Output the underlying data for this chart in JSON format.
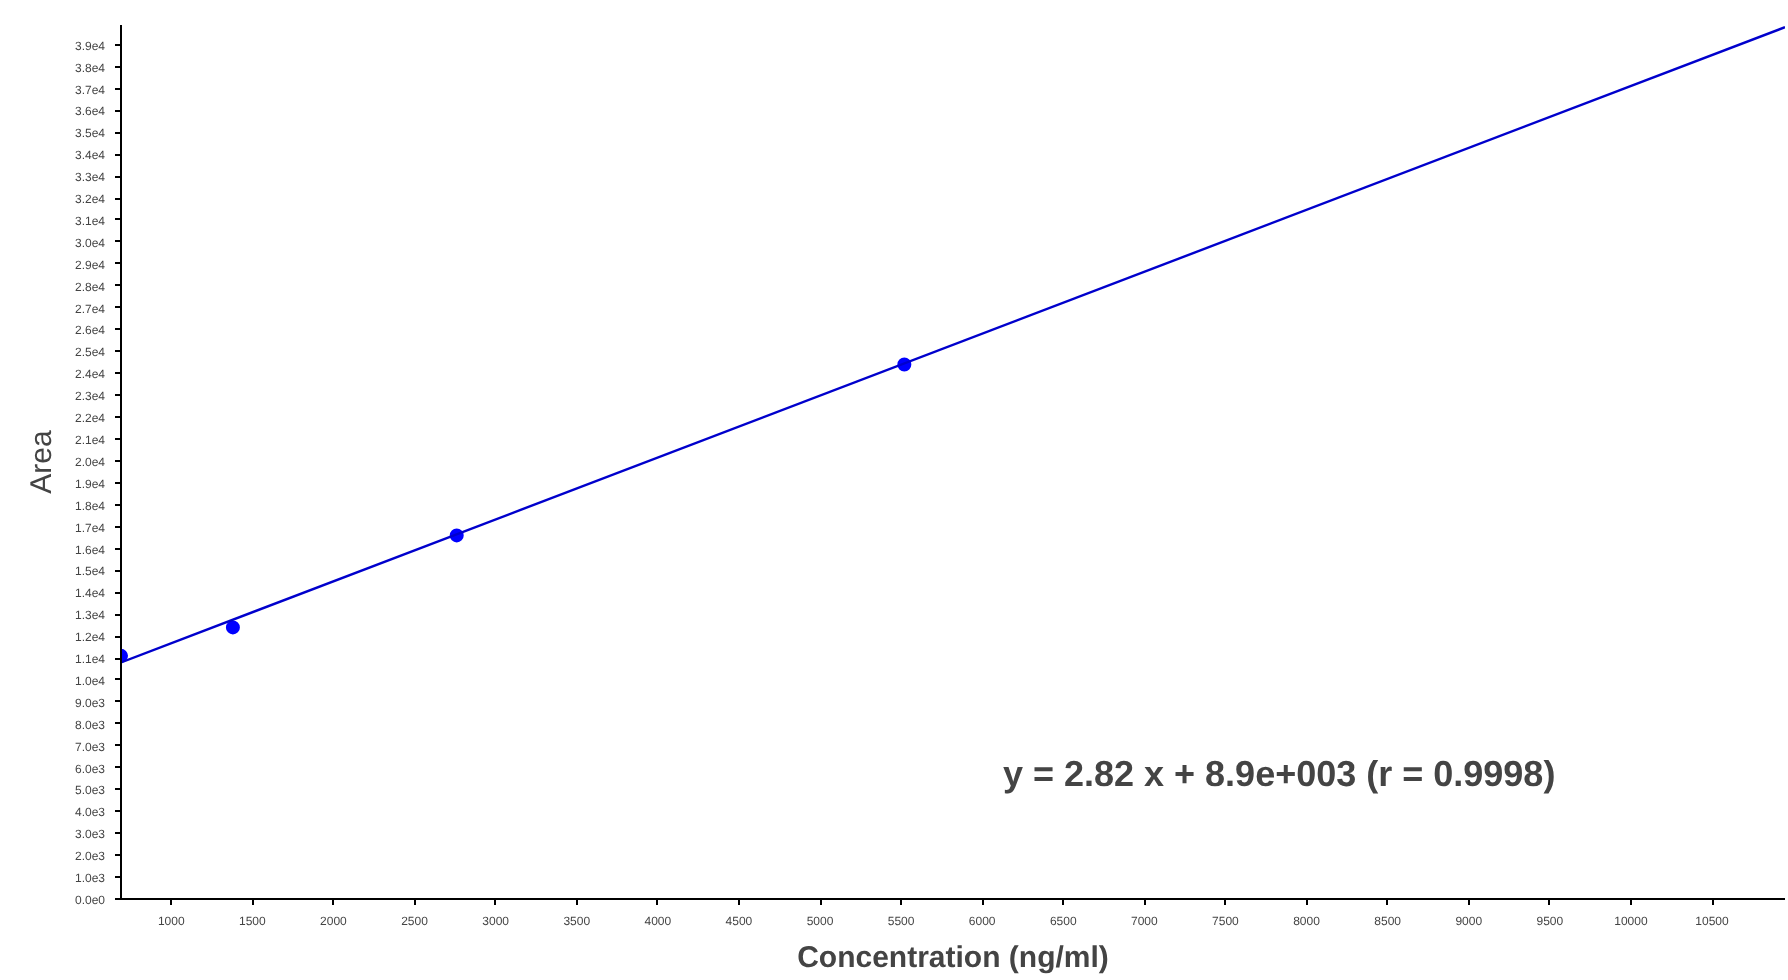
{
  "chart_data": {
    "type": "scatter",
    "xlabel": "Concentration (ng/ml)",
    "ylabel": "Area",
    "annotations": [
      "y = 2.82 x + 8.9e+003 (r = 0.9998)"
    ],
    "series": [
      {
        "color": "#0000ff",
        "x": [
          690,
          1380,
          2760,
          5520
        ],
        "values": [
          11100,
          12400,
          16600,
          24400
        ],
        "marker": "circle"
      },
      {
        "type": "line",
        "color": "#0000cc",
        "x": [
          690,
          10950
        ],
        "values": [
          10800,
          39800
        ]
      }
    ],
    "xlim": [
      690,
      10950
    ],
    "ylim": [
      0,
      39900
    ],
    "xticks": [
      1000,
      1500,
      2000,
      2500,
      3000,
      3500,
      4000,
      4500,
      5000,
      5500,
      6000,
      6500,
      7000,
      7500,
      8000,
      8500,
      9000,
      9500,
      10000,
      10500
    ],
    "yticks": [
      {
        "value": 0,
        "label": "0.0e0"
      },
      {
        "value": 1000,
        "label": "1.0e3"
      },
      {
        "value": 2000,
        "label": "2.0e3"
      },
      {
        "value": 3000,
        "label": "3.0e3"
      },
      {
        "value": 4000,
        "label": "4.0e3"
      },
      {
        "value": 5000,
        "label": "5.0e3"
      },
      {
        "value": 6000,
        "label": "6.0e3"
      },
      {
        "value": 7000,
        "label": "7.0e3"
      },
      {
        "value": 8000,
        "label": "8.0e3"
      },
      {
        "value": 9000,
        "label": "9.0e3"
      },
      {
        "value": 10000,
        "label": "1.0e4"
      },
      {
        "value": 11000,
        "label": "1.1e4"
      },
      {
        "value": 12000,
        "label": "1.2e4"
      },
      {
        "value": 13000,
        "label": "1.3e4"
      },
      {
        "value": 14000,
        "label": "1.4e4"
      },
      {
        "value": 15000,
        "label": "1.5e4"
      },
      {
        "value": 16000,
        "label": "1.6e4"
      },
      {
        "value": 17000,
        "label": "1.7e4"
      },
      {
        "value": 18000,
        "label": "1.8e4"
      },
      {
        "value": 19000,
        "label": "1.9e4"
      },
      {
        "value": 20000,
        "label": "2.0e4"
      },
      {
        "value": 21000,
        "label": "2.1e4"
      },
      {
        "value": 22000,
        "label": "2.2e4"
      },
      {
        "value": 23000,
        "label": "2.3e4"
      },
      {
        "value": 24000,
        "label": "2.4e4"
      },
      {
        "value": 25000,
        "label": "2.5e4"
      },
      {
        "value": 26000,
        "label": "2.6e4"
      },
      {
        "value": 27000,
        "label": "2.7e4"
      },
      {
        "value": 28000,
        "label": "2.8e4"
      },
      {
        "value": 29000,
        "label": "2.9e4"
      },
      {
        "value": 30000,
        "label": "3.0e4"
      },
      {
        "value": 31000,
        "label": "3.1e4"
      },
      {
        "value": 32000,
        "label": "3.2e4"
      },
      {
        "value": 33000,
        "label": "3.3e4"
      },
      {
        "value": 34000,
        "label": "3.4e4"
      },
      {
        "value": 35000,
        "label": "3.5e4"
      },
      {
        "value": 36000,
        "label": "3.6e4"
      },
      {
        "value": 37000,
        "label": "3.7e4"
      },
      {
        "value": 38000,
        "label": "3.8e4"
      },
      {
        "value": 39000,
        "label": "3.9e4"
      }
    ],
    "grid": false
  }
}
